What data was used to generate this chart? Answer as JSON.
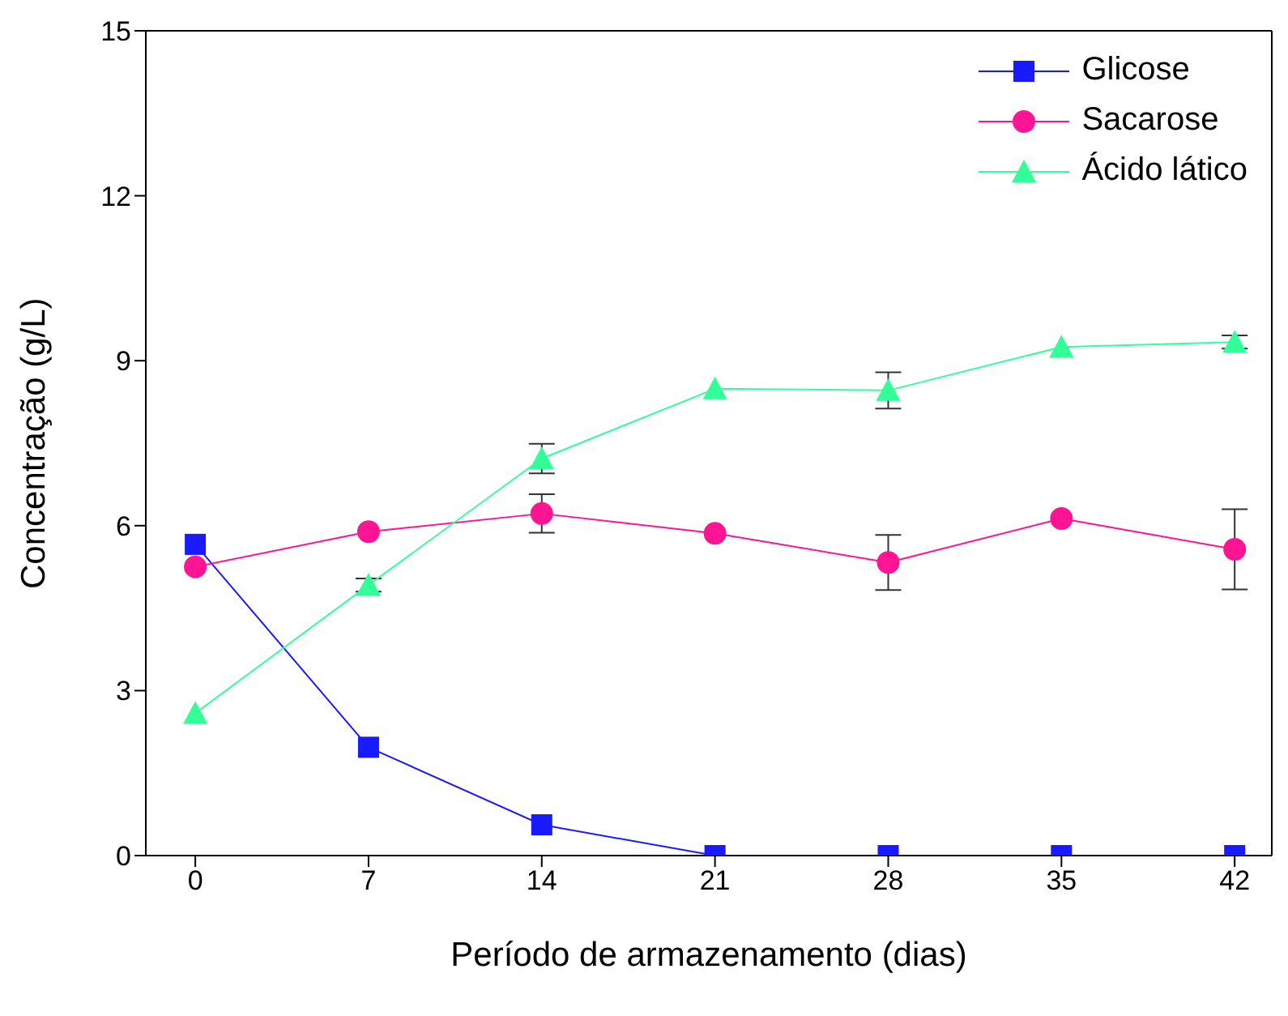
{
  "chart_data": {
    "type": "line",
    "xlabel": "Período de armazenamento (dias)",
    "ylabel": "Concentração (g/L)",
    "x": [
      0,
      7,
      14,
      21,
      28,
      35,
      42
    ],
    "xlim": [
      -2,
      43.5
    ],
    "xticks": [
      0,
      7,
      14,
      21,
      28,
      35,
      42
    ],
    "ylim": [
      0,
      15
    ],
    "yticks": [
      0,
      3,
      6,
      9,
      12,
      15
    ],
    "grid": false,
    "legend": "top right",
    "series": [
      {
        "name": "Glicose",
        "color": "#1a1aff",
        "marker": "square",
        "values": [
          5.66,
          1.97,
          0.56,
          0,
          0,
          0,
          0
        ]
      },
      {
        "name": "Sacarose",
        "color": "#ff1493",
        "marker": "circle",
        "values": [
          5.25,
          5.89,
          6.22,
          5.86,
          5.33,
          6.13,
          5.57
        ],
        "errors": [
          null,
          null,
          0.35,
          null,
          0.5,
          null,
          0.73
        ]
      },
      {
        "name": "Ácido lático",
        "color": "#33ff99",
        "marker": "triangle",
        "values": [
          2.59,
          4.92,
          7.22,
          8.49,
          8.46,
          9.25,
          9.34
        ],
        "errors": [
          null,
          0.12,
          0.27,
          null,
          0.33,
          null,
          0.12
        ]
      }
    ]
  }
}
